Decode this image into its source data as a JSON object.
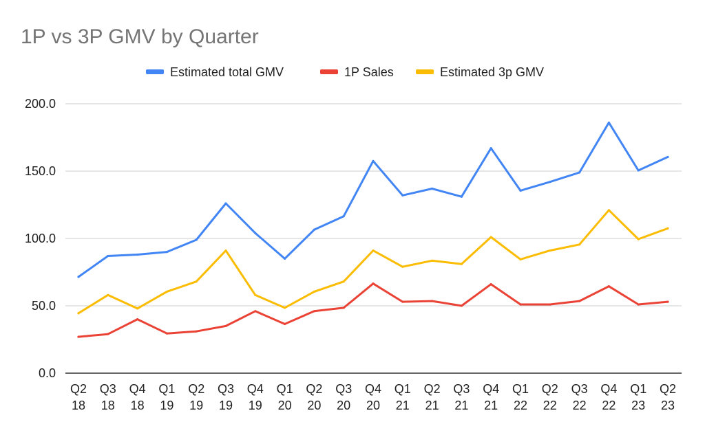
{
  "chart_data": {
    "type": "line",
    "title": "1P vs 3P GMV by Quarter",
    "xlabel": "",
    "ylabel": "",
    "ylim": [
      0,
      200
    ],
    "yticks": [
      "0.0",
      "50.0",
      "100.0",
      "150.0",
      "200.0"
    ],
    "grid": true,
    "legend_position": "top",
    "categories": [
      [
        "Q2",
        "18"
      ],
      [
        "Q3",
        "18"
      ],
      [
        "Q4",
        "18"
      ],
      [
        "Q1",
        "19"
      ],
      [
        "Q2",
        "19"
      ],
      [
        "Q3",
        "19"
      ],
      [
        "Q4",
        "19"
      ],
      [
        "Q1",
        "20"
      ],
      [
        "Q2",
        "20"
      ],
      [
        "Q3",
        "20"
      ],
      [
        "Q4",
        "20"
      ],
      [
        "Q1",
        "21"
      ],
      [
        "Q2",
        "21"
      ],
      [
        "Q3",
        "21"
      ],
      [
        "Q4",
        "21"
      ],
      [
        "Q1",
        "22"
      ],
      [
        "Q2",
        "22"
      ],
      [
        "Q3",
        "22"
      ],
      [
        "Q4",
        "22"
      ],
      [
        "Q1",
        "23"
      ],
      [
        "Q2",
        "23"
      ]
    ],
    "series": [
      {
        "name": "Estimated total GMV",
        "color": "#4285F4",
        "values": [
          71.5,
          87,
          88,
          90,
          99,
          126,
          104,
          85,
          106.5,
          116.5,
          157.5,
          132,
          137,
          131,
          167,
          135.5,
          142,
          149,
          186,
          150.5,
          160.5
        ]
      },
      {
        "name": "1P Sales",
        "color": "#EA4335",
        "values": [
          27,
          29,
          40,
          29.5,
          31,
          35,
          46,
          36.5,
          46,
          48.5,
          66.5,
          53,
          53.5,
          50,
          66,
          51,
          51,
          53.5,
          64.5,
          51,
          53
        ]
      },
      {
        "name": "Estimated 3p GMV",
        "color": "#FBBC04",
        "values": [
          44.5,
          58,
          48,
          60.5,
          68,
          91,
          58,
          48.5,
          60.5,
          68,
          91,
          79,
          83.5,
          81,
          101,
          84.5,
          91,
          95.5,
          121,
          99.5,
          107.5
        ]
      }
    ]
  }
}
